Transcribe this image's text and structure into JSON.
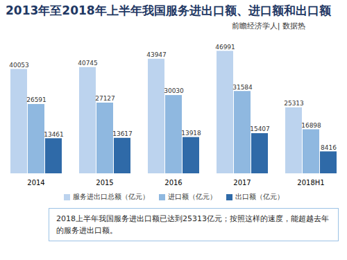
{
  "chart_data": {
    "type": "bar",
    "title": "2013年至2018年上半年我国服务进出口额、进口额和出口额",
    "subtitle": "前瞻经济学人| 数据热",
    "annotation": "2018上半年我国服务进出口额已达到25313亿元；按照这样的速度，能超越去年的服务进出口额。",
    "categories": [
      "2014",
      "2015",
      "2016",
      "2017",
      "2018H1"
    ],
    "series": [
      {
        "name": "服务进出口总额（亿元）",
        "color": "#bcd3ee",
        "values": [
          40053,
          40745,
          43947,
          46991,
          25313
        ]
      },
      {
        "name": "进口额（亿元）",
        "color": "#8fb8e0",
        "values": [
          26591,
          27127,
          30030,
          31584,
          16898
        ]
      },
      {
        "name": "出口额（亿元）",
        "color": "#2f6aa8",
        "values": [
          13461,
          13617,
          13918,
          15407,
          8416
        ]
      }
    ],
    "ylim": [
      0,
      50000
    ],
    "grid": false,
    "data_labels": true,
    "tick_labels": "x",
    "legend": "bottom"
  }
}
